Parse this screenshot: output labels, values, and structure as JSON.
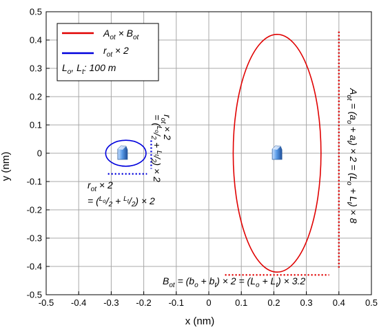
{
  "chart_data": {
    "type": "scatter",
    "xlabel": "x (nm)",
    "ylabel": "y (nm)",
    "xlim": [
      -0.5,
      0.5
    ],
    "ylim": [
      -0.5,
      0.5
    ],
    "xticks": [
      "-0.5",
      "-0.4",
      "-0.3",
      "-0.2",
      "-0.1",
      "0",
      "0.1",
      "0.2",
      "0.3",
      "0.4",
      "0.5"
    ],
    "yticks": [
      "0.5",
      "0.4",
      "0.3",
      "0.2",
      "0.1",
      "0",
      "-0.1",
      "-0.2",
      "-0.3",
      "-0.4",
      "-0.5"
    ],
    "grid": true,
    "legend_position": "top-left",
    "legend": [
      {
        "text": "A_ot × B_ot",
        "color": "#e00000"
      },
      {
        "text": "r_ot × 2",
        "color": "#0000dd"
      },
      {
        "text": "L_o, L_t: 100 m",
        "color": "none"
      }
    ],
    "shapes": [
      {
        "kind": "ellipse",
        "name": "A_ot × B_ot",
        "color": "#e00000",
        "cx": 0.21,
        "cy": 0.0,
        "rx": 0.135,
        "ry": 0.42
      },
      {
        "kind": "ellipse",
        "name": "r_ot × 2",
        "color": "#0000dd",
        "cx": -0.255,
        "cy": 0.0,
        "rx": 0.062,
        "ry": 0.046
      }
    ],
    "markers": [
      {
        "name": "target-marker-left",
        "x": -0.265,
        "y": 0.0
      },
      {
        "name": "target-marker-right",
        "x": 0.21,
        "y": 0.0
      }
    ],
    "dotted_lines": [
      {
        "name": "r-vertical-dotted",
        "color": "#0000dd",
        "x1": -0.177,
        "y1": 0.045,
        "x2": -0.177,
        "y2": -0.055
      },
      {
        "name": "r-horizontal-dotted",
        "color": "#0000dd",
        "x1": -0.31,
        "y1": -0.073,
        "x2": -0.19,
        "y2": -0.073
      },
      {
        "name": "A-vertical-dotted",
        "color": "#e00000",
        "x1": 0.4,
        "y1": 0.43,
        "x2": 0.4,
        "y2": -0.41
      },
      {
        "name": "B-horizontal-dotted",
        "color": "#e00000",
        "x1": 0.05,
        "y1": -0.43,
        "x2": 0.37,
        "y2": -0.43
      }
    ],
    "annotations": {
      "r_bottom_line1": "r_ot × 2",
      "r_bottom_line2": "= (L_o/2 + L_t/2) × 2",
      "r_vertical": "r_ot × 2 = (L_o/2 + L_t/2) × 2",
      "A_vertical": "A_ot = (a_o + a_t) × 2 = (L_o + L_t) × 8",
      "B_bottom": "B_ot = (b_o + b_t) × 2 = (L_o + L_t) × 3.2"
    }
  }
}
